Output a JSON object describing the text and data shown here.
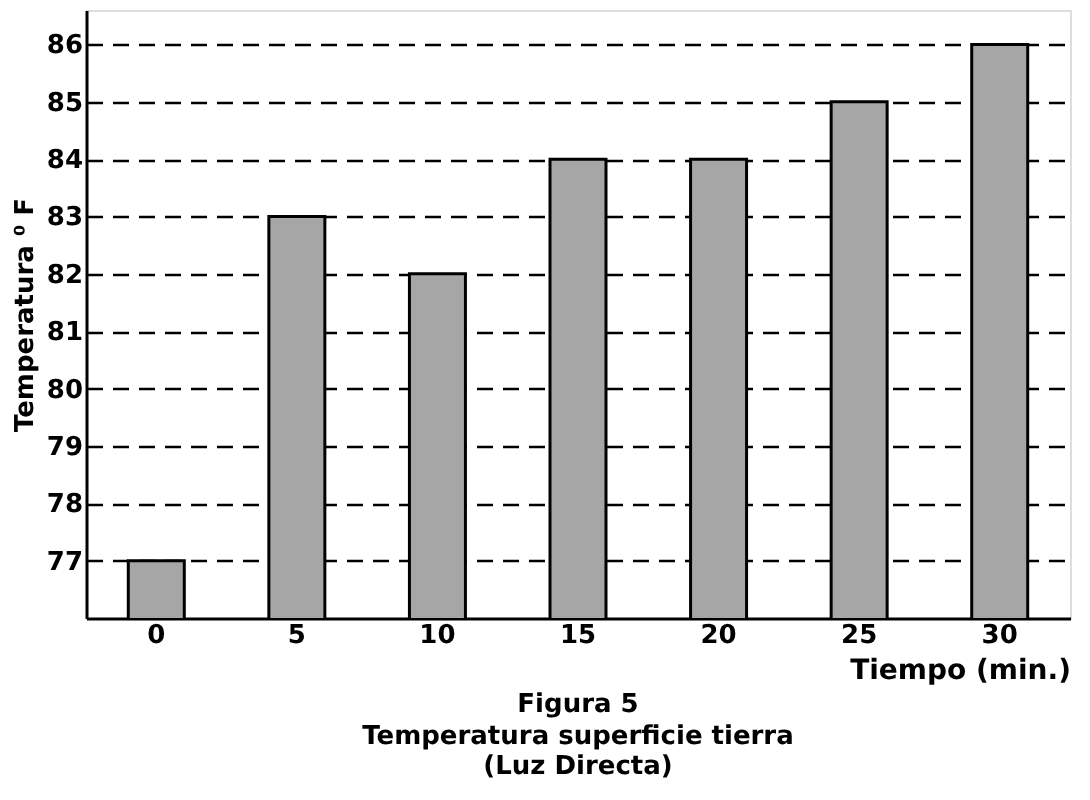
{
  "chart_data": {
    "type": "bar",
    "title": "Figura 5",
    "subtitle": "Temperatura superficie tierra\n(Luz Directa)",
    "xlabel": "Tiempo (min.)",
    "ylabel": "Temperatura ⁰ F",
    "categories": [
      "0",
      "5",
      "10",
      "15",
      "20",
      "25",
      "30"
    ],
    "values": [
      77,
      83,
      82,
      84,
      84,
      85,
      86
    ],
    "color": "#a6a6a6",
    "ylim": [
      76,
      86.6
    ],
    "yticks": [
      77,
      78,
      79,
      80,
      81,
      82,
      83,
      84,
      85,
      86
    ],
    "grid": "y"
  }
}
